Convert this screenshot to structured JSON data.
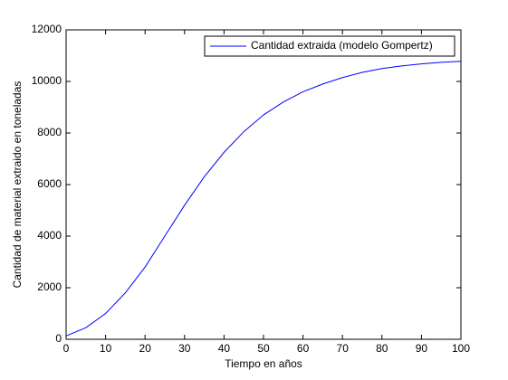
{
  "chart_data": {
    "type": "line",
    "xlabel": "Tiempo en años",
    "ylabel": "Cantidad de material extraido en toneladas",
    "x": [
      0,
      5,
      10,
      15,
      20,
      25,
      30,
      35,
      40,
      45,
      50,
      55,
      60,
      65,
      70,
      75,
      80,
      85,
      90,
      95,
      100
    ],
    "series": [
      {
        "name": "Cantidad extraida (modelo Gompertz)",
        "color": "#0000ff",
        "values": [
          130,
          450,
          1000,
          1800,
          2800,
          4000,
          5200,
          6300,
          7250,
          8050,
          8700,
          9200,
          9600,
          9900,
          10150,
          10350,
          10500,
          10600,
          10680,
          10740,
          10780
        ]
      }
    ],
    "xlim": [
      0,
      100
    ],
    "xticks": [
      0,
      10,
      20,
      30,
      40,
      50,
      60,
      70,
      80,
      90,
      100
    ],
    "ylim": [
      0,
      12000
    ],
    "yticks": [
      0,
      2000,
      4000,
      6000,
      8000,
      10000,
      12000
    ],
    "grid": false,
    "legend": "top-right"
  }
}
